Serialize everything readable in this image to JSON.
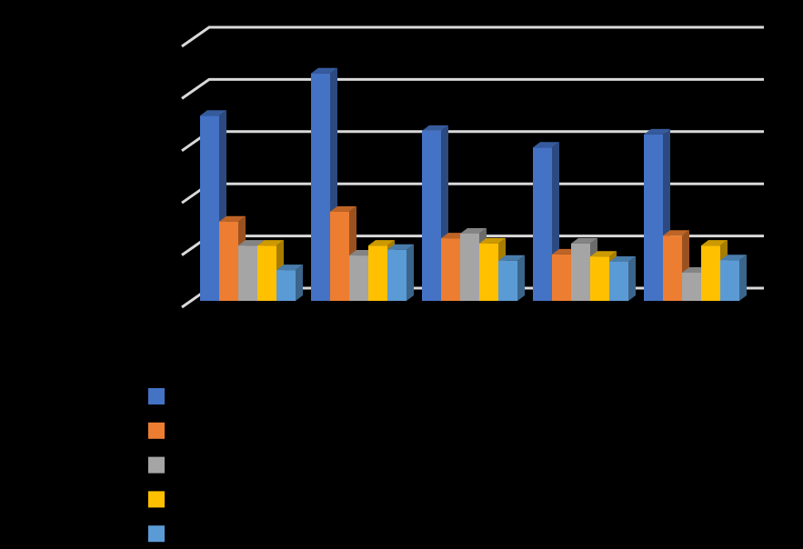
{
  "chart_data": {
    "type": "bar3d",
    "categories": [
      null,
      null,
      null,
      null,
      null
    ],
    "series": [
      {
        "color": "#4472c4",
        "values": [
          3.55,
          4.36,
          3.26,
          2.94,
          3.19
        ]
      },
      {
        "color": "#ed7d31",
        "values": [
          1.52,
          1.71,
          1.2,
          0.89,
          1.25
        ]
      },
      {
        "color": "#a5a5a5",
        "values": [
          1.06,
          0.87,
          1.29,
          1.1,
          0.54
        ]
      },
      {
        "color": "#ffc000",
        "values": [
          1.06,
          1.06,
          1.1,
          0.85,
          1.06
        ]
      },
      {
        "color": "#5b9bd5",
        "values": [
          0.59,
          0.98,
          0.77,
          0.75,
          0.78
        ]
      }
    ],
    "ylim": [
      0,
      5
    ],
    "yticks": [
      0,
      1,
      2,
      3,
      4,
      5
    ],
    "grid": true
  }
}
